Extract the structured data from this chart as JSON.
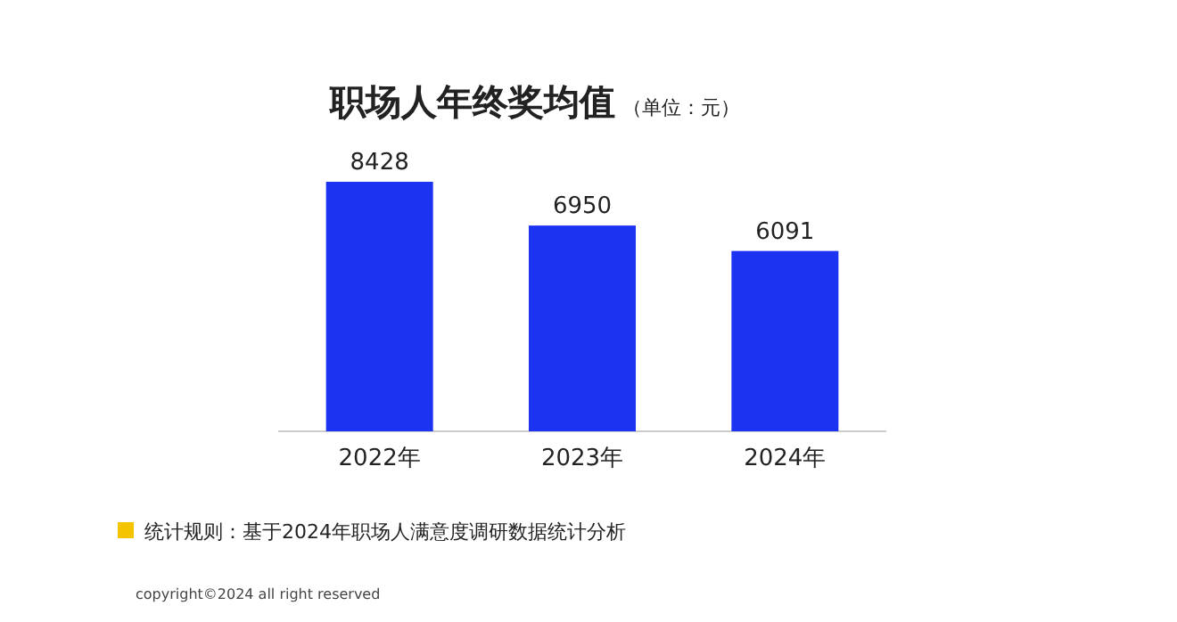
{
  "chart_data": {
    "type": "bar",
    "title": "职场人年终奖均值",
    "subtitle": "（单位：元）",
    "categories": [
      "2022年",
      "2023年",
      "2024年"
    ],
    "values": [
      8428,
      6950,
      6091
    ],
    "color": "#1c34f2",
    "data_labels": true,
    "annotations": [
      "统计规则：基于2024年职场人满意度调研数据统计分析",
      "copyright©2024 all right reserved"
    ]
  }
}
